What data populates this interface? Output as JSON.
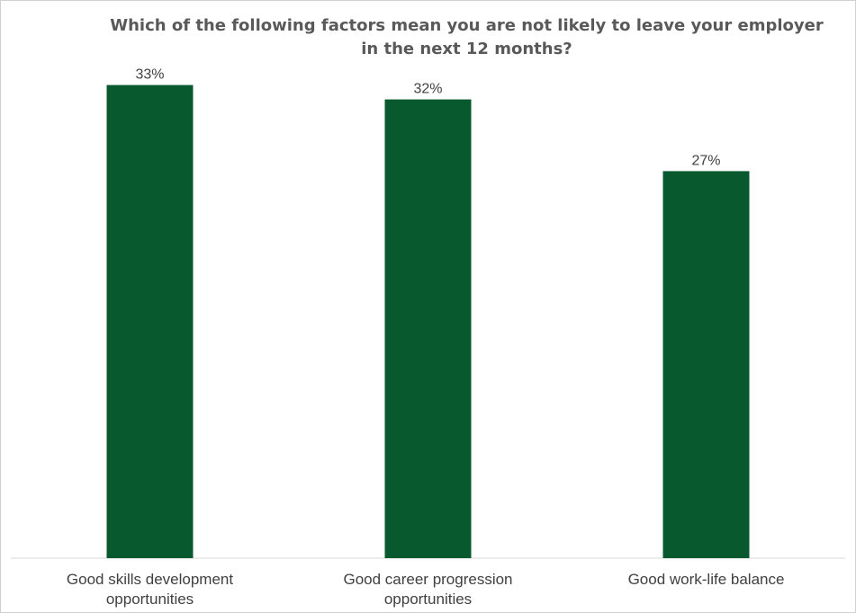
{
  "chart_data": {
    "type": "bar",
    "title": "Which of the following factors mean you are not likely to leave your employer in the next 12 months?",
    "categories": [
      [
        "Good skills development",
        "opportunities"
      ],
      [
        "Good career progression",
        "opportunities"
      ],
      [
        "Good work-life balance"
      ]
    ],
    "values": [
      33,
      32,
      27
    ],
    "value_labels": [
      "33%",
      "32%",
      "27%"
    ],
    "ylim": [
      0,
      35
    ],
    "grid": false,
    "bar_color": "#085a2e",
    "axis_color": "#d9d9d9",
    "text_color": "#404040"
  }
}
